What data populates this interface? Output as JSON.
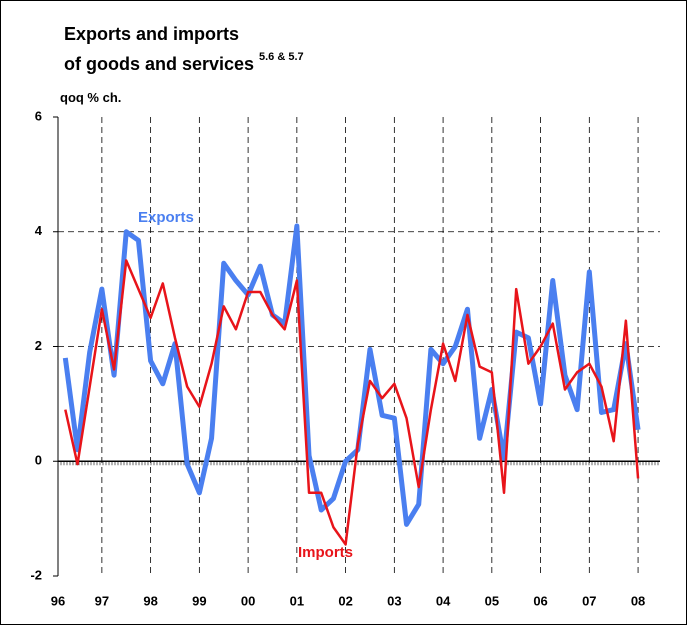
{
  "chart_data": {
    "type": "line",
    "title_line1": "Exports and imports",
    "title_line2": "of goods and services",
    "title_note": "5.6 & 5.7",
    "y_label": "qoq % ch.",
    "x": [
      1996.25,
      1996.5,
      1996.75,
      1997,
      1997.25,
      1997.5,
      1997.75,
      1998,
      1998.25,
      1998.5,
      1998.75,
      1999,
      1999.25,
      1999.5,
      1999.75,
      2000,
      2000.25,
      2000.5,
      2000.75,
      2001,
      2001.25,
      2001.5,
      2001.75,
      2002,
      2002.25,
      2002.5,
      2002.75,
      2003,
      2003.25,
      2003.5,
      2003.75,
      2004,
      2004.25,
      2004.5,
      2004.75,
      2005,
      2005.25,
      2005.5,
      2005.75,
      2006,
      2006.25,
      2006.5,
      2006.75,
      2007,
      2007.25,
      2007.5,
      2007.75,
      2008
    ],
    "series": [
      {
        "name": "Exports",
        "color": "#4a7ff0",
        "width": 5,
        "values": [
          1.8,
          0.2,
          1.9,
          3.0,
          1.5,
          4.0,
          3.85,
          1.75,
          1.35,
          2.05,
          -0.05,
          -0.55,
          0.4,
          3.45,
          3.15,
          2.9,
          3.4,
          2.55,
          2.4,
          4.1,
          0.1,
          -0.85,
          -0.65,
          0.0,
          0.2,
          1.95,
          0.8,
          0.75,
          -1.1,
          -0.75,
          1.95,
          1.7,
          2.0,
          2.65,
          0.4,
          1.25,
          0.05,
          2.25,
          2.15,
          1.0,
          3.15,
          1.5,
          0.9,
          3.3,
          0.85,
          0.9,
          2.05,
          0.55
        ]
      },
      {
        "name": "Imports",
        "color": "#e8141a",
        "width": 2.5,
        "values": [
          0.9,
          -0.05,
          1.3,
          2.65,
          1.6,
          3.5,
          3.0,
          2.5,
          3.1,
          2.15,
          1.3,
          0.95,
          1.7,
          2.7,
          2.3,
          2.95,
          2.95,
          2.55,
          2.3,
          3.15,
          -0.55,
          -0.55,
          -1.15,
          -1.45,
          0.3,
          1.4,
          1.1,
          1.35,
          0.75,
          -0.45,
          0.9,
          2.05,
          1.4,
          2.55,
          1.65,
          1.55,
          -0.55,
          3.0,
          1.7,
          2.0,
          2.4,
          1.25,
          1.55,
          1.7,
          1.3,
          0.35,
          2.45,
          -0.3
        ]
      }
    ],
    "ylim": [
      -2,
      6
    ],
    "yticks": [
      -2,
      0,
      2,
      4,
      6
    ],
    "xlim": [
      1996.1,
      2008.45
    ],
    "xticks": [
      {
        "value": 1996,
        "label": "96"
      },
      {
        "value": 1997,
        "label": "97"
      },
      {
        "value": 1998,
        "label": "98"
      },
      {
        "value": 1999,
        "label": "99"
      },
      {
        "value": 2000,
        "label": "00"
      },
      {
        "value": 2001,
        "label": "01"
      },
      {
        "value": 2002,
        "label": "02"
      },
      {
        "value": 2003,
        "label": "03"
      },
      {
        "value": 2004,
        "label": "04"
      },
      {
        "value": 2005,
        "label": "05"
      },
      {
        "value": 2006,
        "label": "06"
      },
      {
        "value": 2007,
        "label": "07"
      },
      {
        "value": 2008,
        "label": "08"
      }
    ],
    "grid": true
  }
}
